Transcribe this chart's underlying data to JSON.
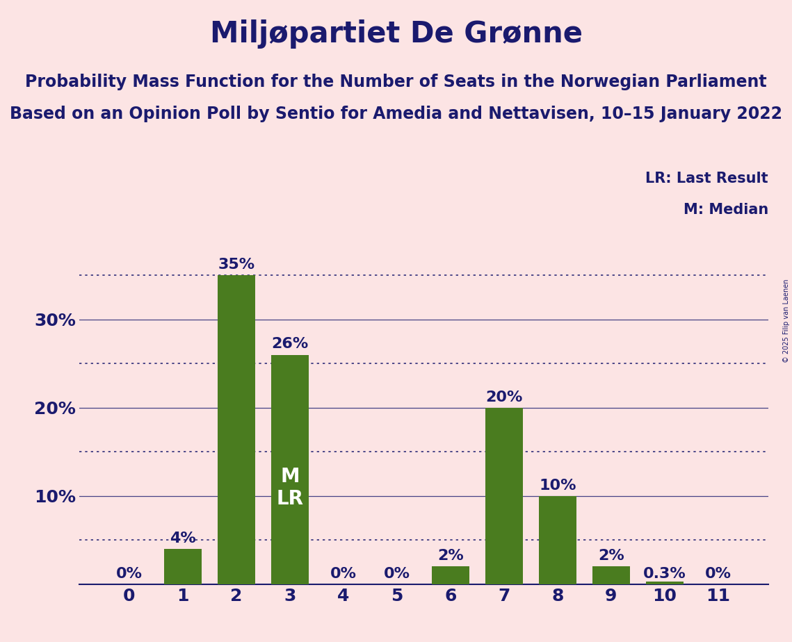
{
  "title": "Miljøpartiet De Grønne",
  "subtitle1": "Probability Mass Function for the Number of Seats in the Norwegian Parliament",
  "subtitle2": "Based on an Opinion Poll by Sentio for Amedia and Nettavisen, 10–15 January 2022",
  "copyright": "© 2025 Filip van Laenen",
  "categories": [
    0,
    1,
    2,
    3,
    4,
    5,
    6,
    7,
    8,
    9,
    10,
    11
  ],
  "values": [
    0.0,
    0.04,
    0.35,
    0.26,
    0.0,
    0.0,
    0.02,
    0.2,
    0.1,
    0.02,
    0.003,
    0.0
  ],
  "labels": [
    "0%",
    "4%",
    "35%",
    "26%",
    "0%",
    "0%",
    "2%",
    "20%",
    "10%",
    "2%",
    "0.3%",
    "0%"
  ],
  "bar_color": "#4a7c1f",
  "background_color": "#fce4e4",
  "text_color": "#1a1a6e",
  "grid_color": "#1a1a6e",
  "median_seat": 3,
  "last_result_seat": 3,
  "legend_lr": "LR: Last Result",
  "legend_m": "M: Median",
  "ylim": [
    0,
    0.4
  ],
  "yticks": [
    0.0,
    0.1,
    0.2,
    0.3
  ],
  "ytick_labels": [
    "",
    "10%",
    "20%",
    "30%"
  ],
  "dotted_lines": [
    0.35,
    0.25,
    0.15,
    0.05
  ],
  "solid_lines": [
    0.1,
    0.2,
    0.3
  ],
  "title_fontsize": 30,
  "subtitle_fontsize": 17,
  "label_fontsize": 16,
  "tick_fontsize": 18,
  "legend_fontsize": 15,
  "ml_fontsize": 20
}
